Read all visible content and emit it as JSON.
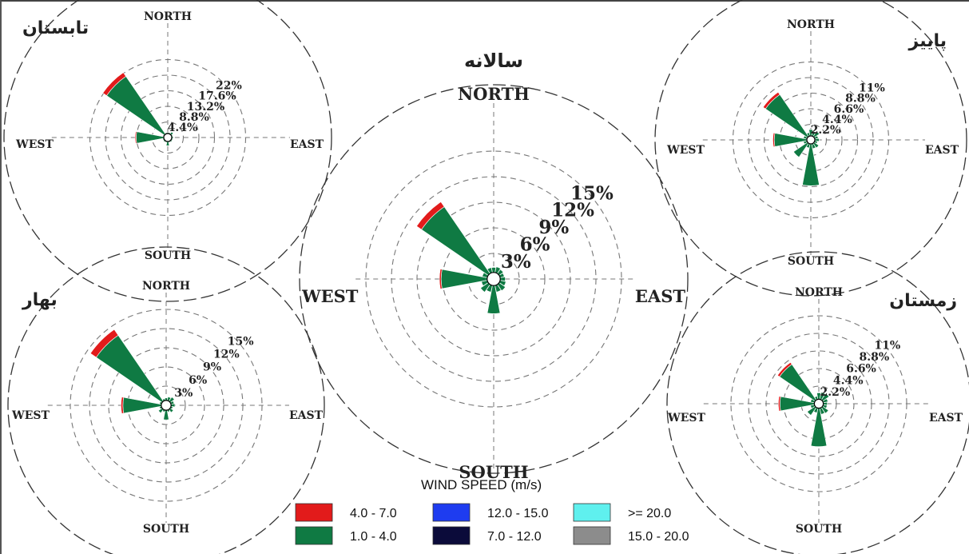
{
  "colors": {
    "speed_4_7": "#e21b1b",
    "speed_1_4": "#0f7a43",
    "speed_12_15": "#1e3cf0",
    "speed_7_12": "#0b0b3a",
    "speed_ge20": "#5ff0ee",
    "speed_15_20": "#8c8c8c"
  },
  "legend": {
    "title": "WIND SPEED (m/s)",
    "items": [
      {
        "label": "4.0 -  7.0",
        "color": "#e21b1b"
      },
      {
        "label": "1.0 -  4.0",
        "color": "#0f7a43"
      },
      {
        "label": "12.0 - 15.0",
        "color": "#1e3cf0"
      },
      {
        "label": "7.0 - 12.0",
        "color": "#0b0b3a"
      },
      {
        "label": ">= 20.0",
        "color": "#5ff0ee"
      },
      {
        "label": "15.0 - 20.0",
        "color": "#8c8c8c"
      }
    ]
  },
  "chart_data": [
    {
      "type": "windrose",
      "title": "تابستان",
      "directions": {
        "north": "NORTH",
        "south": "SOUTH",
        "east": "EAST",
        "west": "WEST"
      },
      "ring_labels": [
        "4.4%",
        "8.8%",
        "13.2%",
        "17.6%",
        "22%"
      ],
      "ring_values": [
        4.4,
        8.8,
        13.2,
        17.6,
        22
      ],
      "series": [
        {
          "name": "1.0 - 4.0",
          "values": [
            0.3,
            0.3,
            0.8,
            0.3,
            0.4,
            0.3,
            0.4,
            0.3,
            1.2,
            0.3,
            0.4,
            0.3,
            7.8,
            0.3,
            19.8,
            0.3
          ]
        },
        {
          "name": "4.0 - 7.0",
          "values": [
            0,
            0,
            0,
            0,
            0,
            0,
            0,
            0,
            0,
            0,
            0,
            0,
            0.3,
            0,
            1.3,
            0
          ]
        }
      ]
    },
    {
      "type": "windrose",
      "title": "سالانه",
      "directions": {
        "north": "NORTH",
        "south": "SOUTH",
        "east": "EAST",
        "west": "WEST"
      },
      "ring_labels": [
        "3%",
        "6%",
        "9%",
        "12%",
        "15%"
      ],
      "ring_values": [
        3,
        6,
        9,
        12,
        15
      ],
      "series": [
        {
          "name": "1.0 - 4.0",
          "values": [
            0.6,
            0.7,
            0.6,
            0.5,
            0.6,
            0.7,
            0.9,
            0.8,
            3.3,
            0.8,
            1.1,
            0.7,
            5.4,
            0.6,
            9.5,
            0.6
          ]
        },
        {
          "name": "4.0 - 7.0",
          "values": [
            0,
            0,
            0,
            0,
            0,
            0,
            0,
            0,
            0,
            0,
            0,
            0,
            0.2,
            0,
            0.7,
            0
          ]
        }
      ]
    },
    {
      "type": "windrose",
      "title": "پاییز",
      "directions": {
        "north": "NORTH",
        "south": "SOUTH",
        "east": "EAST",
        "west": "WEST"
      },
      "ring_labels": [
        "2.2%",
        "4.4%",
        "6.6%",
        "8.8%",
        "11%"
      ],
      "ring_values": [
        2.2,
        4.4,
        6.6,
        8.8,
        11
      ],
      "series": [
        {
          "name": "1.0 - 4.0",
          "values": [
            0.9,
            0.7,
            0.9,
            0.5,
            0.6,
            0.4,
            0.8,
            0.7,
            5.9,
            0.6,
            2.4,
            0.5,
            4.6,
            0.5,
            7.2,
            0.5
          ]
        },
        {
          "name": "4.0 - 7.0",
          "values": [
            0,
            0,
            0,
            0,
            0,
            0,
            0,
            0,
            0,
            0,
            0,
            0,
            0.2,
            0,
            0.4,
            0
          ]
        }
      ]
    },
    {
      "type": "windrose",
      "title": "بهار",
      "directions": {
        "north": "NORTH",
        "south": "SOUTH",
        "east": "EAST",
        "west": "WEST"
      },
      "ring_labels": [
        "3%",
        "6%",
        "9%",
        "12%",
        "15%"
      ],
      "ring_values": [
        3,
        6,
        9,
        12,
        15
      ],
      "series": [
        {
          "name": "1.0 - 4.0",
          "values": [
            0.4,
            0.6,
            0.8,
            0.5,
            0.6,
            0.3,
            0.6,
            0.3,
            1.5,
            0.3,
            0.7,
            0.3,
            6.0,
            0.3,
            12.5,
            0.3
          ]
        },
        {
          "name": "4.0 - 7.0",
          "values": [
            0,
            0,
            0,
            0,
            0,
            0,
            0,
            0,
            0,
            0,
            0,
            0,
            0.3,
            0,
            1.1,
            0
          ]
        }
      ]
    },
    {
      "type": "windrose",
      "title": "زمستان",
      "directions": {
        "north": "NORTH",
        "south": "SOUTH",
        "east": "EAST",
        "west": "WEST"
      },
      "ring_labels": [
        "2.2%",
        "4.4%",
        "6.6%",
        "8.8%",
        "11%"
      ],
      "ring_values": [
        2.2,
        4.4,
        6.6,
        8.8,
        11
      ],
      "series": [
        {
          "name": "1.0 - 4.0",
          "values": [
            0.8,
            0.9,
            1.0,
            0.6,
            0.5,
            0.5,
            0.9,
            0.8,
            4.8,
            0.6,
            1.2,
            0.5,
            4.3,
            0.5,
            5.4,
            0.4
          ]
        },
        {
          "name": "4.0 - 7.0",
          "values": [
            0,
            0,
            0,
            0,
            0,
            0,
            0,
            0,
            0,
            0,
            0,
            0,
            0.2,
            0,
            0.3,
            0
          ]
        }
      ]
    }
  ]
}
